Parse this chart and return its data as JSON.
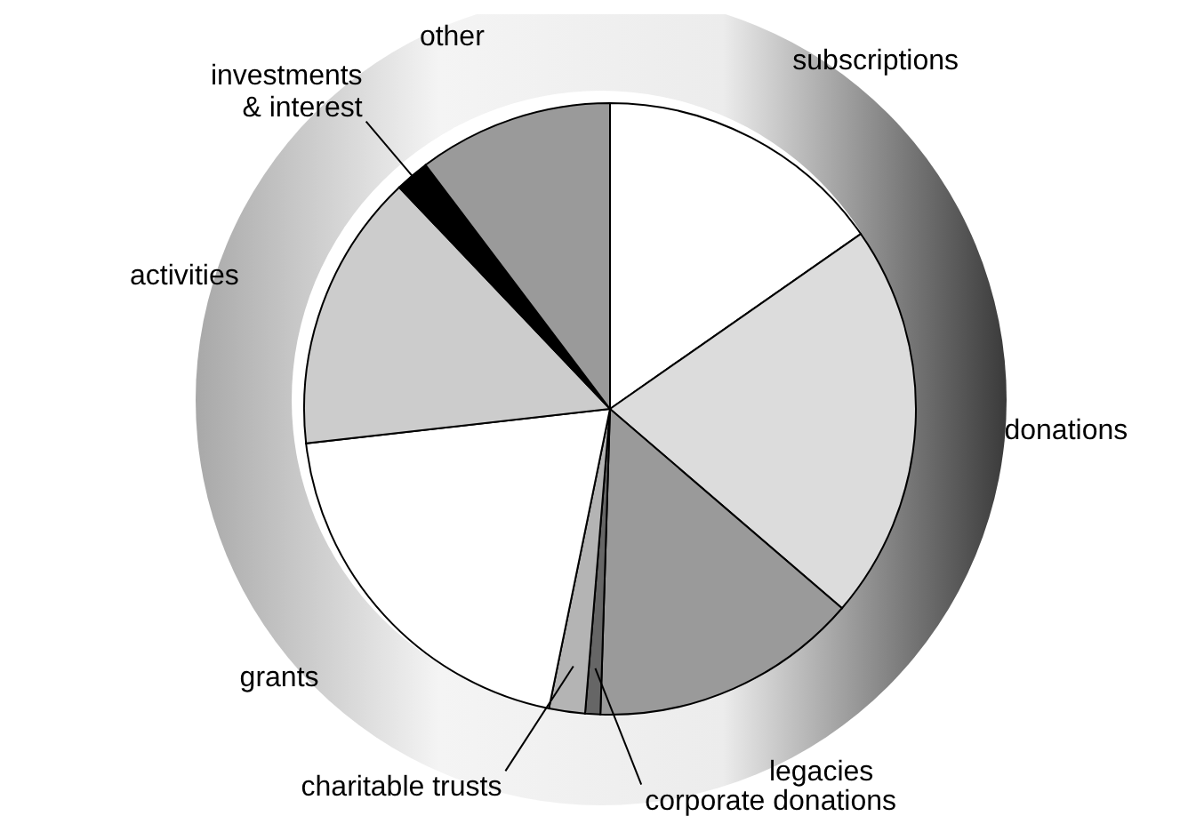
{
  "chart_data": {
    "type": "pie",
    "categories": [
      "subscriptions",
      "donations",
      "legacies",
      "corporate donations",
      "charitable trusts",
      "grants",
      "activities",
      "investments & interest",
      "other"
    ],
    "values": [
      15.3,
      21,
      14.2,
      0.8,
      1.9,
      20,
      14.7,
      1.8,
      10.3
    ],
    "colors": [
      "#ffffff",
      "#dcdcdc",
      "#9a9a9a",
      "#666666",
      "#b4b4b4",
      "#ffffff",
      "#cccccc",
      "#000000",
      "#9a9a9a"
    ]
  }
}
